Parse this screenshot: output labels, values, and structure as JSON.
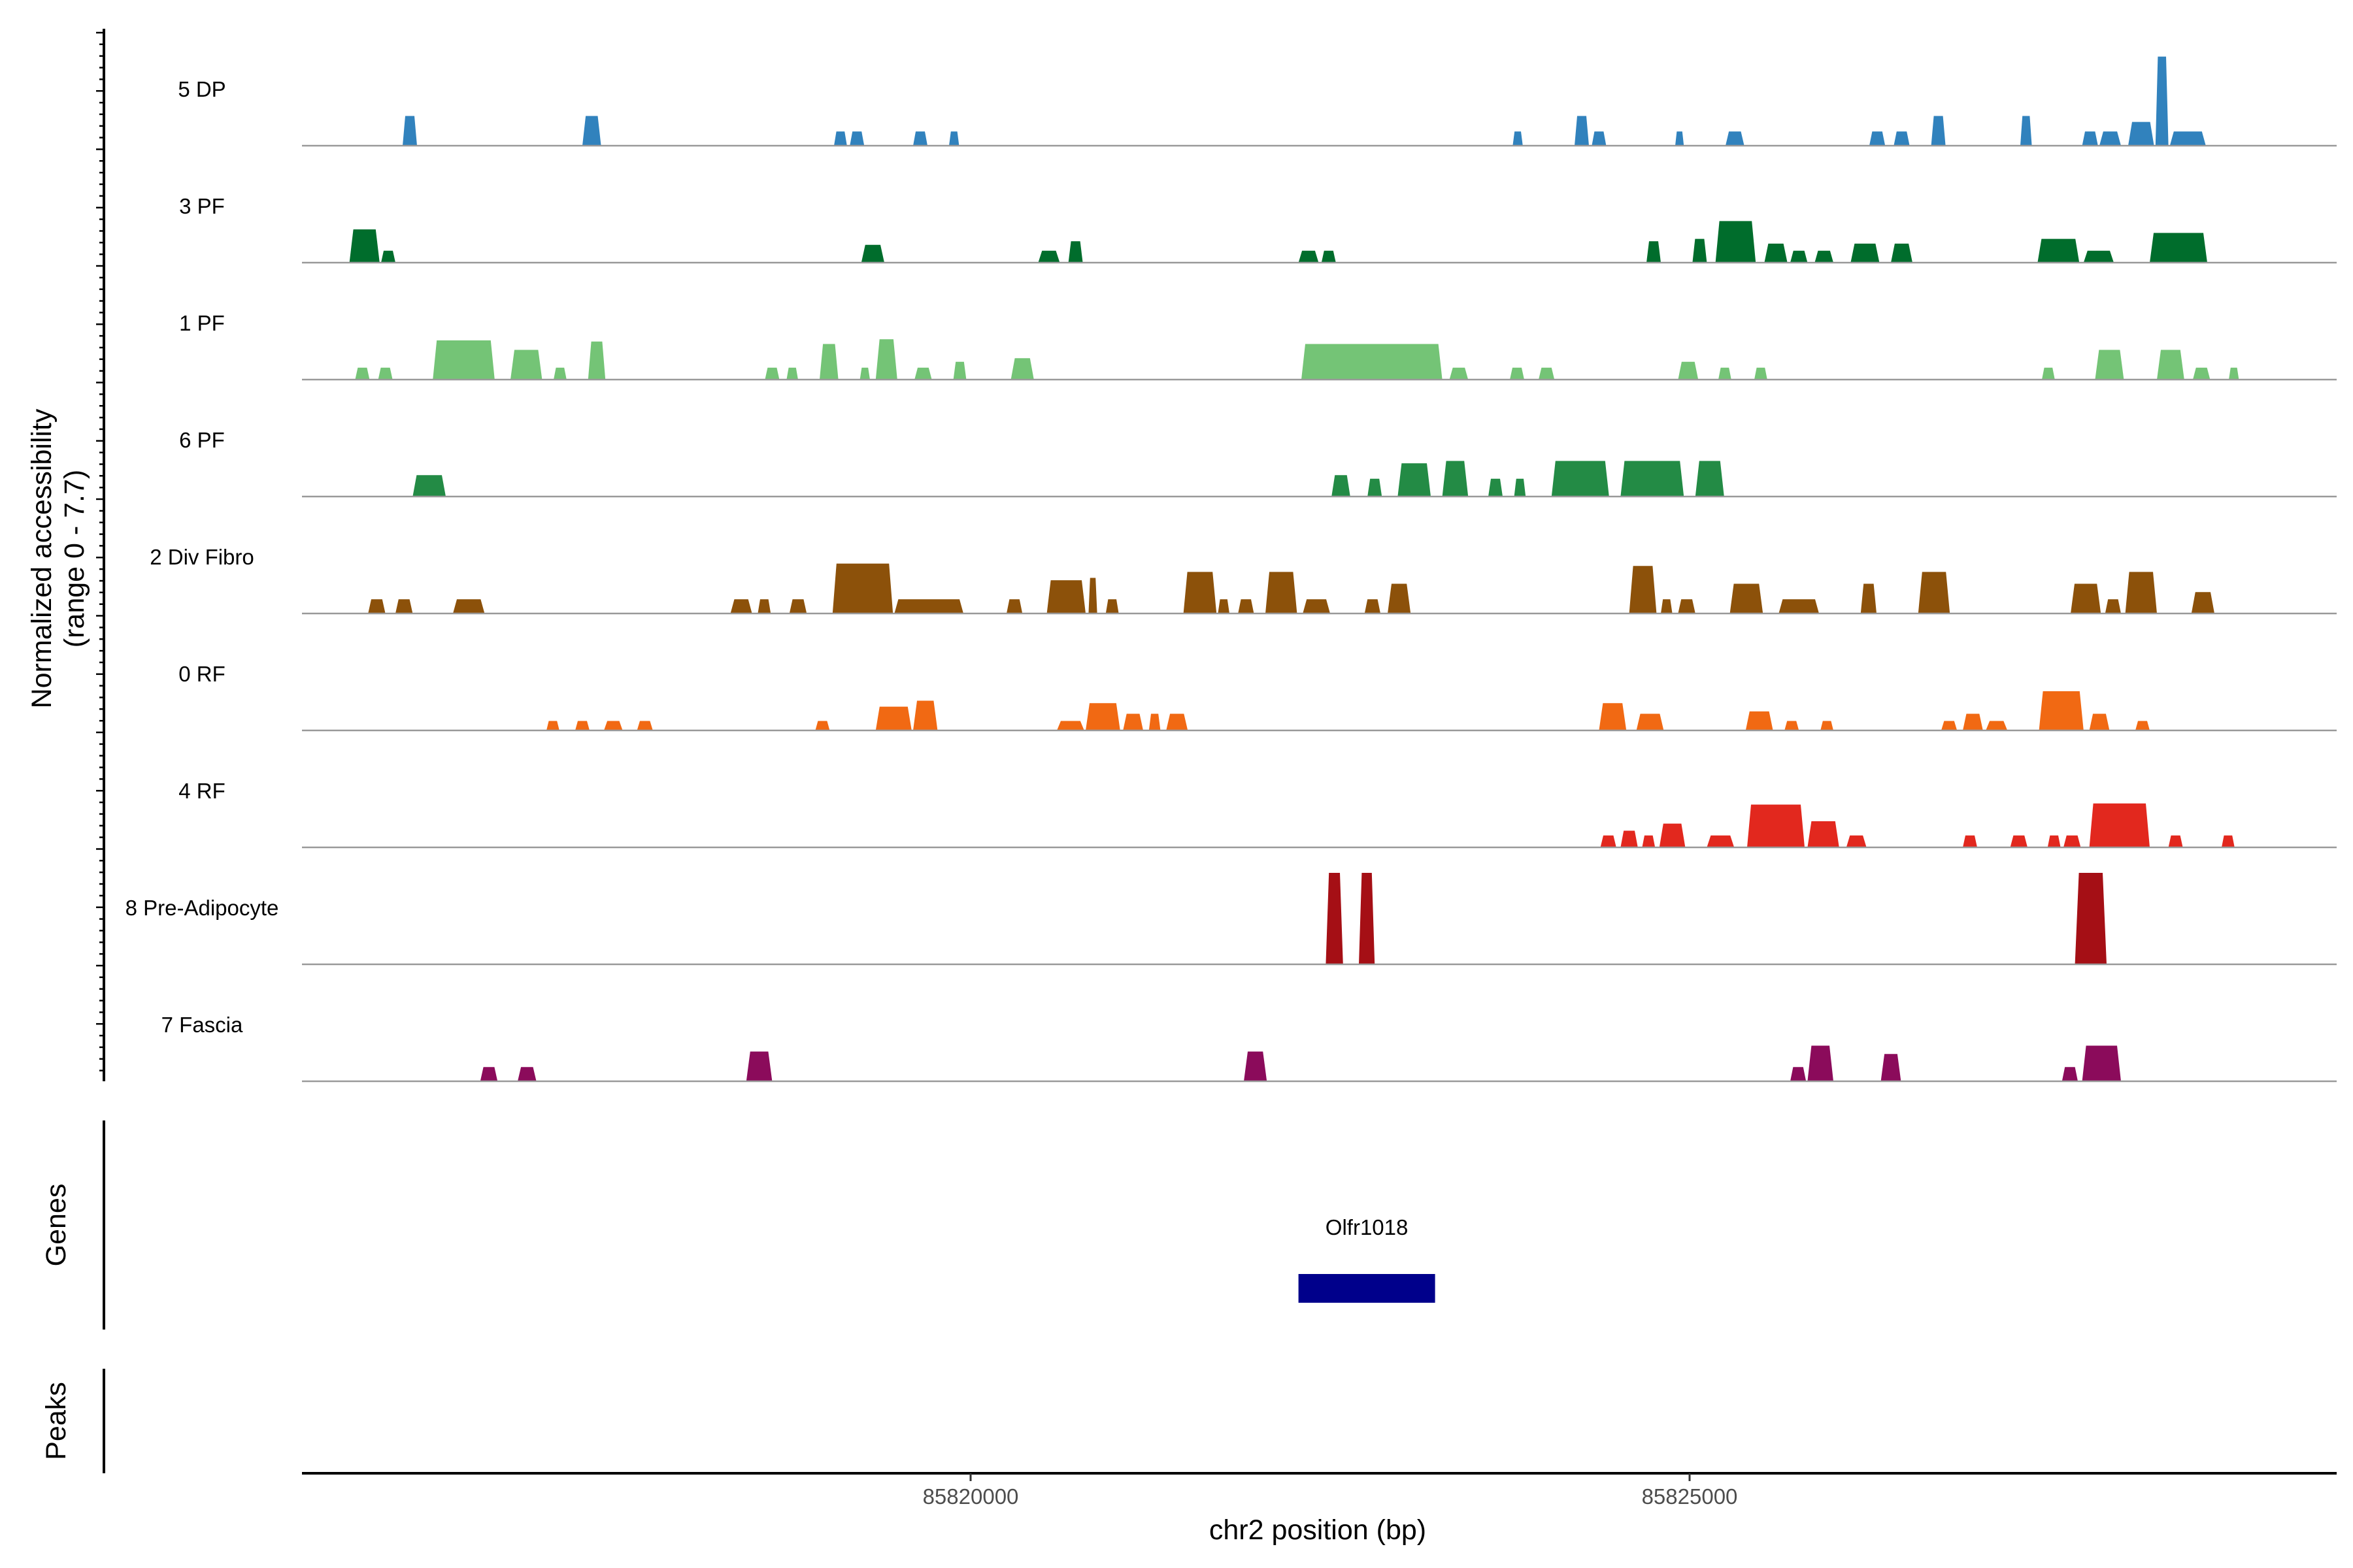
{
  "chart_data": {
    "type": "area",
    "title": "",
    "ylabel": "Normalized accessibility",
    "ylabel_range": "(range 0 - 7.7)",
    "xlabel": "chr2 position (bp)",
    "xlim": [
      85815350,
      85829500
    ],
    "x_ticks": [
      85820000,
      85825000
    ],
    "x_tick_labels": [
      "85820000",
      "85825000"
    ],
    "ymax": 7.7,
    "tracks": [
      {
        "name": "5 DP",
        "color": "#3182BD",
        "peaks": [
          [
            85816050,
            85816150,
            2.5
          ],
          [
            85817300,
            85817430,
            2.5
          ],
          [
            85819050,
            85819140,
            1.2
          ],
          [
            85819160,
            85819260,
            1.2
          ],
          [
            85819600,
            85819700,
            1.2
          ],
          [
            85819850,
            85819920,
            1.2
          ],
          [
            85823770,
            85823840,
            1.2
          ],
          [
            85824200,
            85824300,
            2.5
          ],
          [
            85824320,
            85824420,
            1.2
          ],
          [
            85824900,
            85824960,
            1.2
          ],
          [
            85825250,
            85825380,
            1.2
          ],
          [
            85826250,
            85826360,
            1.2
          ],
          [
            85826420,
            85826530,
            1.2
          ],
          [
            85826680,
            85826780,
            2.5
          ],
          [
            85827300,
            85827380,
            2.5
          ],
          [
            85827730,
            85827840,
            1.2
          ],
          [
            85827850,
            85828000,
            1.2
          ],
          [
            85828050,
            85828230,
            2.0
          ],
          [
            85828240,
            85828330,
            7.5
          ],
          [
            85828340,
            85828590,
            1.2
          ]
        ]
      },
      {
        "name": "3 PF",
        "color": "#006D2C",
        "peaks": [
          [
            85815680,
            85815890,
            2.8
          ],
          [
            85815900,
            85816000,
            1.0
          ],
          [
            85819240,
            85819400,
            1.5
          ],
          [
            85820470,
            85820620,
            1.0
          ],
          [
            85820680,
            85820780,
            1.8
          ],
          [
            85822280,
            85822420,
            1.0
          ],
          [
            85822440,
            85822540,
            1.0
          ],
          [
            85824700,
            85824800,
            1.8
          ],
          [
            85825020,
            85825120,
            2.0
          ],
          [
            85825180,
            85825460,
            3.5
          ],
          [
            85825520,
            85825680,
            1.6
          ],
          [
            85825700,
            85825820,
            1.0
          ],
          [
            85825870,
            85826000,
            1.0
          ],
          [
            85826120,
            85826320,
            1.6
          ],
          [
            85826400,
            85826550,
            1.6
          ],
          [
            85827420,
            85827710,
            2.0
          ],
          [
            85827740,
            85827950,
            1.0
          ],
          [
            85828200,
            85828600,
            2.5
          ]
        ]
      },
      {
        "name": "1 PF",
        "color": "#74C476",
        "peaks": [
          [
            85815720,
            85815820,
            1.0
          ],
          [
            85815880,
            85815980,
            1.0
          ],
          [
            85816260,
            85816690,
            3.3
          ],
          [
            85816800,
            85817020,
            2.5
          ],
          [
            85817100,
            85817190,
            1.0
          ],
          [
            85817340,
            85817460,
            3.2
          ],
          [
            85818570,
            85818670,
            1.0
          ],
          [
            85818720,
            85818800,
            1.0
          ],
          [
            85818950,
            85819080,
            3.0
          ],
          [
            85819230,
            85819300,
            1.0
          ],
          [
            85819340,
            85819490,
            3.4
          ],
          [
            85819610,
            85819730,
            1.0
          ],
          [
            85819880,
            85819970,
            1.5
          ],
          [
            85820280,
            85820440,
            1.8
          ],
          [
            85822300,
            85823280,
            3.0
          ],
          [
            85823330,
            85823460,
            1.0
          ],
          [
            85823750,
            85823850,
            1.0
          ],
          [
            85823950,
            85824060,
            1.0
          ],
          [
            85824920,
            85825060,
            1.5
          ],
          [
            85825200,
            85825290,
            1.0
          ],
          [
            85825450,
            85825540,
            1.0
          ],
          [
            85827450,
            85827540,
            1.0
          ],
          [
            85827820,
            85828020,
            2.5
          ],
          [
            85828250,
            85828440,
            2.5
          ],
          [
            85828500,
            85828620,
            1.0
          ],
          [
            85828750,
            85828820,
            1.0
          ]
        ]
      },
      {
        "name": "6 PF",
        "color": "#238B45",
        "peaks": [
          [
            85816120,
            85816350,
            1.8
          ],
          [
            85822510,
            85822640,
            1.8
          ],
          [
            85822760,
            85822860,
            1.5
          ],
          [
            85822970,
            85823200,
            2.8
          ],
          [
            85823280,
            85823460,
            3.0
          ],
          [
            85823600,
            85823700,
            1.5
          ],
          [
            85823780,
            85823860,
            1.5
          ],
          [
            85824040,
            85824440,
            3.0
          ],
          [
            85824520,
            85824960,
            3.0
          ],
          [
            85825040,
            85825240,
            3.0
          ]
        ]
      },
      {
        "name": "2 Div Fibro",
        "color": "#8C510A",
        "peaks": [
          [
            85815810,
            85815930,
            1.2
          ],
          [
            85816000,
            85816120,
            1.2
          ],
          [
            85816400,
            85816620,
            1.2
          ],
          [
            85818330,
            85818480,
            1.2
          ],
          [
            85818520,
            85818610,
            1.2
          ],
          [
            85818740,
            85818860,
            1.2
          ],
          [
            85819040,
            85819460,
            4.2
          ],
          [
            85819470,
            85819950,
            1.2
          ],
          [
            85820250,
            85820360,
            1.2
          ],
          [
            85820530,
            85820800,
            2.8
          ],
          [
            85820820,
            85820880,
            3.0
          ],
          [
            85820940,
            85821030,
            1.2
          ],
          [
            85821480,
            85821710,
            3.5
          ],
          [
            85821720,
            85821800,
            1.2
          ],
          [
            85821860,
            85821970,
            1.2
          ],
          [
            85822050,
            85822270,
            3.5
          ],
          [
            85822310,
            85822500,
            1.2
          ],
          [
            85822740,
            85822850,
            1.2
          ],
          [
            85822900,
            85823060,
            2.5
          ],
          [
            85824580,
            85824770,
            4.0
          ],
          [
            85824800,
            85824880,
            1.2
          ],
          [
            85824920,
            85825040,
            1.2
          ],
          [
            85825280,
            85825510,
            2.5
          ],
          [
            85825620,
            85825900,
            1.2
          ],
          [
            85826190,
            85826300,
            2.5
          ],
          [
            85826590,
            85826810,
            3.5
          ],
          [
            85827650,
            85827860,
            2.5
          ],
          [
            85827890,
            85828000,
            1.2
          ],
          [
            85828030,
            85828250,
            3.5
          ],
          [
            85828490,
            85828650,
            1.8
          ]
        ]
      },
      {
        "name": "0 RF",
        "color": "#F16913",
        "peaks": [
          [
            85817050,
            85817140,
            0.8
          ],
          [
            85817250,
            85817350,
            0.8
          ],
          [
            85817450,
            85817580,
            0.8
          ],
          [
            85817680,
            85817790,
            0.8
          ],
          [
            85818920,
            85819020,
            0.8
          ],
          [
            85819340,
            85819590,
            2.0
          ],
          [
            85819600,
            85819770,
            2.5
          ],
          [
            85820600,
            85820790,
            0.8
          ],
          [
            85820800,
            85821040,
            2.3
          ],
          [
            85821060,
            85821200,
            1.4
          ],
          [
            85821240,
            85821320,
            1.4
          ],
          [
            85821360,
            85821510,
            1.4
          ],
          [
            85824370,
            85824560,
            2.3
          ],
          [
            85824630,
            85824820,
            1.4
          ],
          [
            85825390,
            85825580,
            1.6
          ],
          [
            85825660,
            85825760,
            0.8
          ],
          [
            85825910,
            85826000,
            0.8
          ],
          [
            85826750,
            85826860,
            0.8
          ],
          [
            85826900,
            85827040,
            1.4
          ],
          [
            85827060,
            85827210,
            0.8
          ],
          [
            85827430,
            85827740,
            3.3
          ],
          [
            85827780,
            85827920,
            1.4
          ],
          [
            85828100,
            85828200,
            0.8
          ]
        ]
      },
      {
        "name": "4 RF",
        "color": "#E2281E",
        "peaks": [
          [
            85824380,
            85824490,
            1.0
          ],
          [
            85824520,
            85824640,
            1.4
          ],
          [
            85824670,
            85824760,
            1.0
          ],
          [
            85824790,
            85824970,
            2.0
          ],
          [
            85825120,
            85825310,
            1.0
          ],
          [
            85825400,
            85825800,
            3.6
          ],
          [
            85825820,
            85826040,
            2.2
          ],
          [
            85826090,
            85826230,
            1.0
          ],
          [
            85826900,
            85827000,
            1.0
          ],
          [
            85827230,
            85827350,
            1.0
          ],
          [
            85827490,
            85827580,
            1.0
          ],
          [
            85827600,
            85827720,
            1.0
          ],
          [
            85827780,
            85828200,
            3.7
          ],
          [
            85828330,
            85828430,
            1.0
          ],
          [
            85828700,
            85828790,
            1.0
          ]
        ]
      },
      {
        "name": "8 Pre-Adipocyte",
        "color": "#A50F15",
        "peaks": [
          [
            85822470,
            85822590,
            7.7
          ],
          [
            85822700,
            85822810,
            7.7
          ],
          [
            85827680,
            85827900,
            7.7
          ]
        ]
      },
      {
        "name": "7 Fascia",
        "color": "#8B0B5B",
        "peaks": [
          [
            85816590,
            85816710,
            1.2
          ],
          [
            85816850,
            85816980,
            1.2
          ],
          [
            85818440,
            85818620,
            2.5
          ],
          [
            85821900,
            85822060,
            2.5
          ],
          [
            85825700,
            85825810,
            1.2
          ],
          [
            85825820,
            85826000,
            3.0
          ],
          [
            85826330,
            85826470,
            2.3
          ],
          [
            85827590,
            85827700,
            1.2
          ],
          [
            85827730,
            85828000,
            3.0
          ]
        ]
      }
    ],
    "genes": {
      "label": "Genes",
      "items": [
        {
          "name": "Olfr1018",
          "start": 85822280,
          "end": 85823230,
          "color": "#00008B"
        }
      ]
    },
    "peaks_track": {
      "label": "Peaks",
      "items": []
    }
  }
}
